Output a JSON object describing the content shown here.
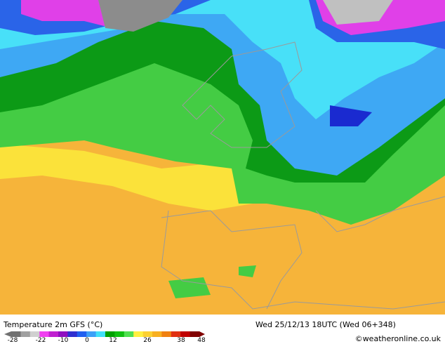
{
  "header": {
    "title": "Temperature 2m GFS (°C)",
    "valid": "Wed 25/12/13 18UTC (Wed 06+348)",
    "credit": "©weatheronline.co.uk"
  },
  "colorbar": {
    "ticks": [
      -28,
      -22,
      -10,
      0,
      12,
      26,
      38,
      48
    ],
    "colors": [
      "#707070",
      "#a0a0a0",
      "#d0d0d0",
      "#f040f0",
      "#c020d0",
      "#9010c0",
      "#3030d0",
      "#2060f0",
      "#3ca0f8",
      "#40e0f8",
      "#00a000",
      "#10c010",
      "#50e050",
      "#fff040",
      "#fcd030",
      "#f8b020",
      "#f08010",
      "#e03010",
      "#c00000",
      "#800000"
    ]
  }
}
